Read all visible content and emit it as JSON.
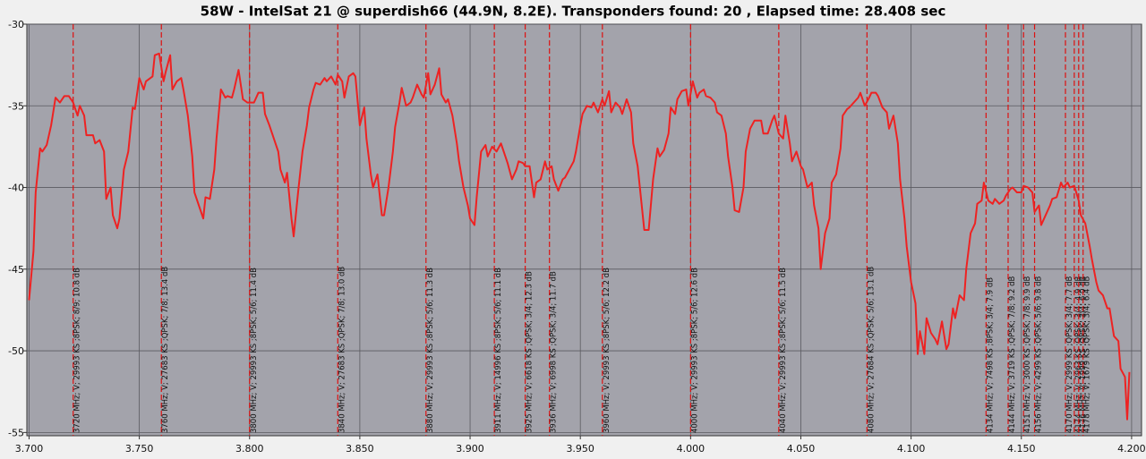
{
  "chart_data": {
    "type": "line",
    "title": "58W - IntelSat 21 @ superdish66 (44.9N, 8.2E). Transponders found: 20 , Elapsed time: 28.408 sec",
    "color": "#ee2222",
    "marker_color": "#dd1111",
    "grid": true,
    "xlim": [
      3.699,
      4.2045
    ],
    "ylim": [
      -55.2,
      -30
    ],
    "xticks": [
      {
        "value": 3.7,
        "label": "3.700"
      },
      {
        "value": 3.75,
        "label": "3.750"
      },
      {
        "value": 3.8,
        "label": "3.800"
      },
      {
        "value": 3.85,
        "label": "3.850"
      },
      {
        "value": 3.9,
        "label": "3.900"
      },
      {
        "value": 3.95,
        "label": "3.950"
      },
      {
        "value": 4.0,
        "label": "4.000"
      },
      {
        "value": 4.05,
        "label": "4.050"
      },
      {
        "value": 4.1,
        "label": "4.100"
      },
      {
        "value": 4.15,
        "label": "4.150"
      },
      {
        "value": 4.2,
        "label": "4.200"
      }
    ],
    "yticks": [
      -30,
      -35,
      -40,
      -45,
      -50,
      -55
    ],
    "x": [
      3.7,
      3.702,
      3.703,
      3.705,
      3.706,
      3.708,
      3.71,
      3.712,
      3.714,
      3.716,
      3.718,
      3.72,
      3.722,
      3.723,
      3.725,
      3.726,
      3.729,
      3.73,
      3.732,
      3.734,
      3.735,
      3.737,
      3.738,
      3.74,
      3.741,
      3.743,
      3.745,
      3.747,
      3.748,
      3.75,
      3.752,
      3.753,
      3.756,
      3.757,
      3.759,
      3.761,
      3.762,
      3.764,
      3.765,
      3.767,
      3.769,
      3.77,
      3.772,
      3.774,
      3.775,
      3.777,
      3.779,
      3.78,
      3.782,
      3.784,
      3.785,
      3.787,
      3.789,
      3.79,
      3.792,
      3.793,
      3.795,
      3.797,
      3.799,
      3.802,
      3.804,
      3.806,
      3.807,
      3.809,
      3.811,
      3.813,
      3.814,
      3.816,
      3.817,
      3.819,
      3.82,
      3.822,
      3.824,
      3.826,
      3.827,
      3.829,
      3.83,
      3.832,
      3.834,
      3.835,
      3.837,
      3.839,
      3.84,
      3.842,
      3.843,
      3.845,
      3.847,
      3.848,
      3.85,
      3.852,
      3.853,
      3.855,
      3.856,
      3.858,
      3.86,
      3.861,
      3.863,
      3.865,
      3.866,
      3.868,
      3.869,
      3.871,
      3.873,
      3.874,
      3.876,
      3.878,
      3.879,
      3.881,
      3.882,
      3.884,
      3.886,
      3.887,
      3.889,
      3.89,
      3.892,
      3.894,
      3.895,
      3.897,
      3.899,
      3.9,
      3.902,
      3.903,
      3.905,
      3.907,
      3.908,
      3.91,
      3.912,
      3.914,
      3.916,
      3.917,
      3.919,
      3.921,
      3.922,
      3.924,
      3.925,
      3.927,
      3.929,
      3.93,
      3.932,
      3.934,
      3.935,
      3.937,
      3.938,
      3.94,
      3.942,
      3.943,
      3.945,
      3.947,
      3.948,
      3.95,
      3.951,
      3.953,
      3.955,
      3.956,
      3.958,
      3.96,
      3.961,
      3.963,
      3.964,
      3.966,
      3.968,
      3.969,
      3.971,
      3.973,
      3.974,
      3.976,
      3.977,
      3.979,
      3.981,
      3.983,
      3.985,
      3.986,
      3.988,
      3.99,
      3.991,
      3.993,
      3.994,
      3.996,
      3.998,
      3.999,
      4.001,
      4.003,
      4.004,
      4.006,
      4.007,
      4.009,
      4.011,
      4.012,
      4.014,
      4.016,
      4.017,
      4.019,
      4.02,
      4.022,
      4.024,
      4.025,
      4.027,
      4.029,
      4.03,
      4.032,
      4.033,
      4.035,
      4.037,
      4.038,
      4.04,
      4.042,
      4.043,
      4.045,
      4.046,
      4.048,
      4.05,
      4.051,
      4.053,
      4.055,
      4.056,
      4.058,
      4.059,
      4.061,
      4.063,
      4.064,
      4.066,
      4.068,
      4.069,
      4.071,
      4.072,
      4.074,
      4.076,
      4.077,
      4.079,
      4.081,
      4.082,
      4.084,
      4.085,
      4.087,
      4.089,
      4.09,
      4.092,
      4.094,
      4.095,
      4.097,
      4.098,
      4.1,
      4.102,
      4.103,
      4.104,
      4.106,
      4.107,
      4.109,
      4.111,
      4.112,
      4.114,
      4.116,
      4.117,
      4.119,
      4.12,
      4.122,
      4.124,
      4.125,
      4.127,
      4.129,
      4.13,
      4.132,
      4.133,
      4.135,
      4.137,
      4.138,
      4.14,
      4.142,
      4.143,
      4.145,
      4.146,
      4.148,
      4.15,
      4.151,
      4.153,
      4.155,
      4.156,
      4.158,
      4.159,
      4.161,
      4.163,
      4.164,
      4.166,
      4.168,
      4.169,
      4.171,
      4.172,
      4.174,
      4.176,
      4.177,
      4.179,
      4.181,
      4.182,
      4.184,
      4.185,
      4.187,
      4.189,
      4.19,
      4.192,
      4.194,
      4.195,
      4.197,
      4.198,
      4.199
    ],
    "values": [
      -46.9,
      -43.9,
      -40.3,
      -37.6,
      -37.8,
      -37.4,
      -36.2,
      -34.5,
      -34.8,
      -34.4,
      -34.4,
      -34.8,
      -35.6,
      -35.0,
      -35.6,
      -36.8,
      -36.8,
      -37.3,
      -37.1,
      -37.8,
      -40.7,
      -40.0,
      -41.7,
      -42.5,
      -41.9,
      -38.9,
      -37.8,
      -35.1,
      -35.2,
      -33.3,
      -34.0,
      -33.5,
      -33.2,
      -31.9,
      -31.8,
      -33.5,
      -32.9,
      -31.9,
      -34.0,
      -33.5,
      -33.3,
      -34.0,
      -35.6,
      -38.1,
      -40.3,
      -41.1,
      -41.9,
      -40.6,
      -40.7,
      -38.9,
      -37.0,
      -34.0,
      -34.5,
      -34.4,
      -34.5,
      -34.0,
      -32.8,
      -34.6,
      -34.8,
      -34.8,
      -34.2,
      -34.2,
      -35.5,
      -36.2,
      -37.0,
      -37.8,
      -38.9,
      -39.7,
      -39.1,
      -41.9,
      -43.0,
      -40.3,
      -37.8,
      -36.2,
      -35.1,
      -34.0,
      -33.6,
      -33.7,
      -33.3,
      -33.5,
      -33.2,
      -33.7,
      -33.1,
      -33.5,
      -34.5,
      -33.2,
      -33.0,
      -33.2,
      -36.2,
      -35.1,
      -37.0,
      -39.2,
      -40.0,
      -39.2,
      -41.7,
      -41.7,
      -40.0,
      -37.8,
      -36.3,
      -34.8,
      -33.9,
      -35.0,
      -34.8,
      -34.5,
      -33.7,
      -34.3,
      -34.5,
      -33.0,
      -34.3,
      -33.7,
      -32.7,
      -34.3,
      -34.8,
      -34.6,
      -35.6,
      -37.3,
      -38.4,
      -40.0,
      -41.1,
      -41.9,
      -42.3,
      -40.6,
      -37.8,
      -37.4,
      -38.1,
      -37.5,
      -37.8,
      -37.3,
      -38.1,
      -38.5,
      -39.5,
      -38.9,
      -38.4,
      -38.5,
      -38.7,
      -38.7,
      -40.6,
      -39.7,
      -39.5,
      -38.4,
      -38.9,
      -38.7,
      -39.5,
      -40.2,
      -39.5,
      -39.4,
      -38.9,
      -38.4,
      -37.8,
      -36.2,
      -35.5,
      -35.0,
      -35.1,
      -34.8,
      -35.4,
      -34.6,
      -35.0,
      -34.1,
      -35.4,
      -34.8,
      -35.1,
      -35.5,
      -34.6,
      -35.4,
      -37.3,
      -38.7,
      -40.0,
      -42.6,
      -42.6,
      -39.5,
      -37.6,
      -38.1,
      -37.7,
      -36.7,
      -35.1,
      -35.5,
      -34.6,
      -34.1,
      -34.0,
      -35.0,
      -33.5,
      -34.5,
      -34.2,
      -34.0,
      -34.4,
      -34.5,
      -34.8,
      -35.4,
      -35.6,
      -36.7,
      -38.1,
      -40.0,
      -41.4,
      -41.5,
      -40.0,
      -37.8,
      -36.4,
      -35.9,
      -35.9,
      -35.9,
      -36.7,
      -36.7,
      -35.9,
      -35.6,
      -36.7,
      -37.0,
      -35.6,
      -37.3,
      -38.4,
      -37.8,
      -38.7,
      -38.9,
      -40.0,
      -39.7,
      -41.1,
      -42.5,
      -45.0,
      -42.8,
      -41.9,
      -39.7,
      -39.2,
      -37.6,
      -35.6,
      -35.2,
      -35.1,
      -34.8,
      -34.5,
      -34.2,
      -35.0,
      -34.5,
      -34.2,
      -34.2,
      -34.4,
      -35.1,
      -35.4,
      -36.4,
      -35.6,
      -37.3,
      -39.5,
      -41.9,
      -43.6,
      -45.8,
      -47.1,
      -50.2,
      -48.8,
      -50.2,
      -48.0,
      -48.9,
      -49.3,
      -49.6,
      -48.2,
      -49.9,
      -49.6,
      -47.4,
      -48.0,
      -46.6,
      -46.9,
      -45.0,
      -42.8,
      -42.2,
      -41.0,
      -40.8,
      -39.7,
      -40.8,
      -41.0,
      -40.7,
      -41.0,
      -40.8,
      -40.5,
      -40.1,
      -40.0,
      -40.3,
      -40.3,
      -39.9,
      -40.0,
      -40.3,
      -41.5,
      -41.1,
      -42.3,
      -41.7,
      -41.1,
      -40.7,
      -40.6,
      -39.7,
      -40.0,
      -39.7,
      -40.0,
      -39.9,
      -40.8,
      -41.7,
      -42.2,
      -43.6,
      -44.4,
      -45.8,
      -46.3,
      -46.6,
      -47.4,
      -47.4,
      -49.1,
      -49.4,
      -51.1,
      -51.6,
      -54.2,
      -51.3
    ],
    "markers": [
      {
        "freq": 3.72,
        "label": "3720 MHz; V; 29993 KS ;8PSK; 8/9; 10.8 dB"
      },
      {
        "freq": 3.76,
        "label": "3760 MHz; V; 27683 KS ;QPSK; 7/8; 13.4 dB"
      },
      {
        "freq": 3.8,
        "label": "3800 MHz; V; 29993 KS ;8PSK; 5/6; 11.4 dB"
      },
      {
        "freq": 3.84,
        "label": "3840 MHz; V; 27683 KS ;QPSK; 7/8; 13.0 dB"
      },
      {
        "freq": 3.88,
        "label": "3880 MHz; V; 29993 KS ;8PSK; 5/6; 11.3 dB"
      },
      {
        "freq": 3.911,
        "label": "3911 MHz; V; 14996 KS ;8PSK; 5/6; 11.1 dB"
      },
      {
        "freq": 3.925,
        "label": "3925 MHz; V; 6618 KS ;QPSK; 3/4; 12.3 dB"
      },
      {
        "freq": 3.936,
        "label": "3936 MHz; V; 6998 KS ;QPSK; 3/4; 11.7 dB"
      },
      {
        "freq": 3.96,
        "label": "3960 MHz; V; 29993 KS ;8PSK; 5/6; 12.2 dB"
      },
      {
        "freq": 4.0,
        "label": "4000 MHz; V; 29993 KS ;8PSK; 5/6; 12.6 dB"
      },
      {
        "freq": 4.04,
        "label": "4040 MHz; V; 29993 KS ;8PSK; 5/6; 11.5 dB"
      },
      {
        "freq": 4.08,
        "label": "4080 MHz; V; 27684 KS ;QPSK; 5/6; 13.1 dB"
      },
      {
        "freq": 4.134,
        "label": "4134 MHz; V; 7498 KS ;8PSK; 3/4; 7.9 dB"
      },
      {
        "freq": 4.144,
        "label": "4144 MHz; V; 3719 KS ;QPSK; 7/8; 9.2 dB"
      },
      {
        "freq": 4.151,
        "label": "4151 MHz; V; 3000 KS ;QPSK; 7/8; 9.9 dB"
      },
      {
        "freq": 4.156,
        "label": "4156 MHz; V; 4299 KS ;QPSK; 5/6; 9.8 dB"
      },
      {
        "freq": 4.17,
        "label": "4170 MHz; V; 2999 KS ;QPSK; 3/4; 7.7 dB"
      },
      {
        "freq": 4.174,
        "label": "4174 MHz; V; 2963 KS ;QPSK; 3/4; 4.9 dB"
      },
      {
        "freq": 4.176,
        "label": "4176 MHz; V; 1999 KS ;QPSK; 3/4; 6.0 dB"
      },
      {
        "freq": 4.178,
        "label": "4178 MHz; V; 1679 KS ;QPSK; 3/4; 6.4 dB"
      }
    ]
  }
}
